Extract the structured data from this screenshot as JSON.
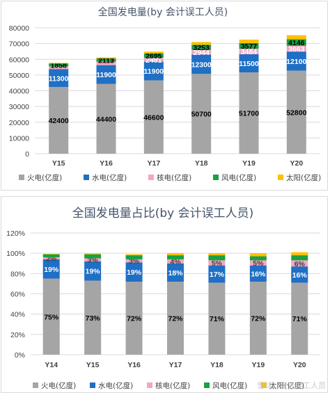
{
  "chart_data": [
    {
      "type": "bar",
      "stacked": true,
      "title": "全国发电量(by 会计误工人员)",
      "categories": [
        "Y15",
        "Y16",
        "Y17",
        "Y18",
        "Y19",
        "Y20"
      ],
      "ylim": [
        0,
        80000
      ],
      "yticks": [
        "0",
        "10000",
        "20000",
        "30000",
        "40000",
        "50000",
        "60000",
        "70000",
        "80000"
      ],
      "grid": true,
      "legend_position": "bottom",
      "series": [
        {
          "name": "火电(亿度)",
          "color": "#a5a5a5",
          "values": [
            42400,
            44400,
            46600,
            50700,
            51700,
            52800
          ],
          "labels": [
            "42400",
            "44400",
            "46600",
            "50700",
            "51700",
            "52800"
          ],
          "label_color": "#000000"
        },
        {
          "name": "水电(亿度)",
          "color": "#1f6fc5",
          "values": [
            11300,
            11900,
            11900,
            12300,
            11500,
            12100
          ],
          "labels": [
            "11300",
            "11900",
            "11900",
            "12300",
            "11500",
            "12100"
          ],
          "label_color": "#ffffff"
        },
        {
          "name": "核电(亿度)",
          "color": "#f4a6bf",
          "values": [
            1700,
            2100,
            2481,
            2944,
            3484,
            3663
          ],
          "labels": [
            "",
            "",
            "2481",
            "2944",
            "3484",
            "3663"
          ],
          "label_color": "#ffffff"
        },
        {
          "name": "风电(亿度)",
          "color": "#1aa142",
          "values": [
            1858,
            2113,
            2695,
            3253,
            3577,
            4146
          ],
          "labels": [
            "1858",
            "2113",
            "2695",
            "3253",
            "3577",
            "4146"
          ],
          "label_color": "#000000"
        },
        {
          "name": "太阳(亿度)",
          "color": "#ffc000",
          "values": [
            400,
            660,
            1180,
            1770,
            2240,
            2600
          ],
          "labels": [
            "",
            "",
            "",
            "",
            "",
            ""
          ],
          "label_color": "#000000"
        }
      ]
    },
    {
      "type": "bar",
      "stacked": true,
      "percent": true,
      "title": "全国发电量占比(by 会计误工人员)",
      "categories": [
        "Y14",
        "Y15",
        "Y16",
        "Y17",
        "Y18",
        "Y19",
        "Y20"
      ],
      "ylim": [
        0,
        1.2
      ],
      "yticks": [
        "0%",
        "20%",
        "40%",
        "60%",
        "80%",
        "100%",
        "120%"
      ],
      "grid": true,
      "legend_position": "bottom",
      "series": [
        {
          "name": "火电(亿度)",
          "color": "#a5a5a5",
          "values": [
            0.75,
            0.73,
            0.72,
            0.72,
            0.71,
            0.72,
            0.71
          ],
          "labels": [
            "75%",
            "73%",
            "72%",
            "72%",
            "71%",
            "72%",
            "71%"
          ],
          "label_color": "#000000"
        },
        {
          "name": "水电(亿度)",
          "color": "#1f6fc5",
          "values": [
            0.19,
            0.19,
            0.19,
            0.18,
            0.17,
            0.16,
            0.16
          ],
          "labels": [
            "19%",
            "19%",
            "19%",
            "18%",
            "17%",
            "16%",
            "16%"
          ],
          "label_color": "#ffffff"
        },
        {
          "name": "核电(亿度)",
          "color": "#f4a6bf",
          "values": [
            0.02,
            0.03,
            0.03,
            0.04,
            0.05,
            0.05,
            0.06
          ],
          "labels": [
            "2%",
            "3%",
            "3%",
            "4%",
            "5%",
            "5%",
            "6%"
          ],
          "label_color": "#404040"
        },
        {
          "name": "风电(亿度)",
          "color": "#1aa142",
          "values": [
            0.03,
            0.04,
            0.04,
            0.04,
            0.05,
            0.04,
            0.05
          ],
          "labels": [
            "",
            "",
            "",
            "",
            "",
            "",
            ""
          ],
          "label_color": "#000000"
        },
        {
          "name": "太阳(亿度)",
          "color": "#ffc000",
          "values": [
            0.004,
            0.007,
            0.01,
            0.02,
            0.02,
            0.03,
            0.03
          ],
          "labels": [
            "",
            "",
            "",
            "",
            "",
            "",
            ""
          ],
          "label_color": "#000000"
        }
      ]
    }
  ],
  "watermark": "雪球：会计误工人员"
}
